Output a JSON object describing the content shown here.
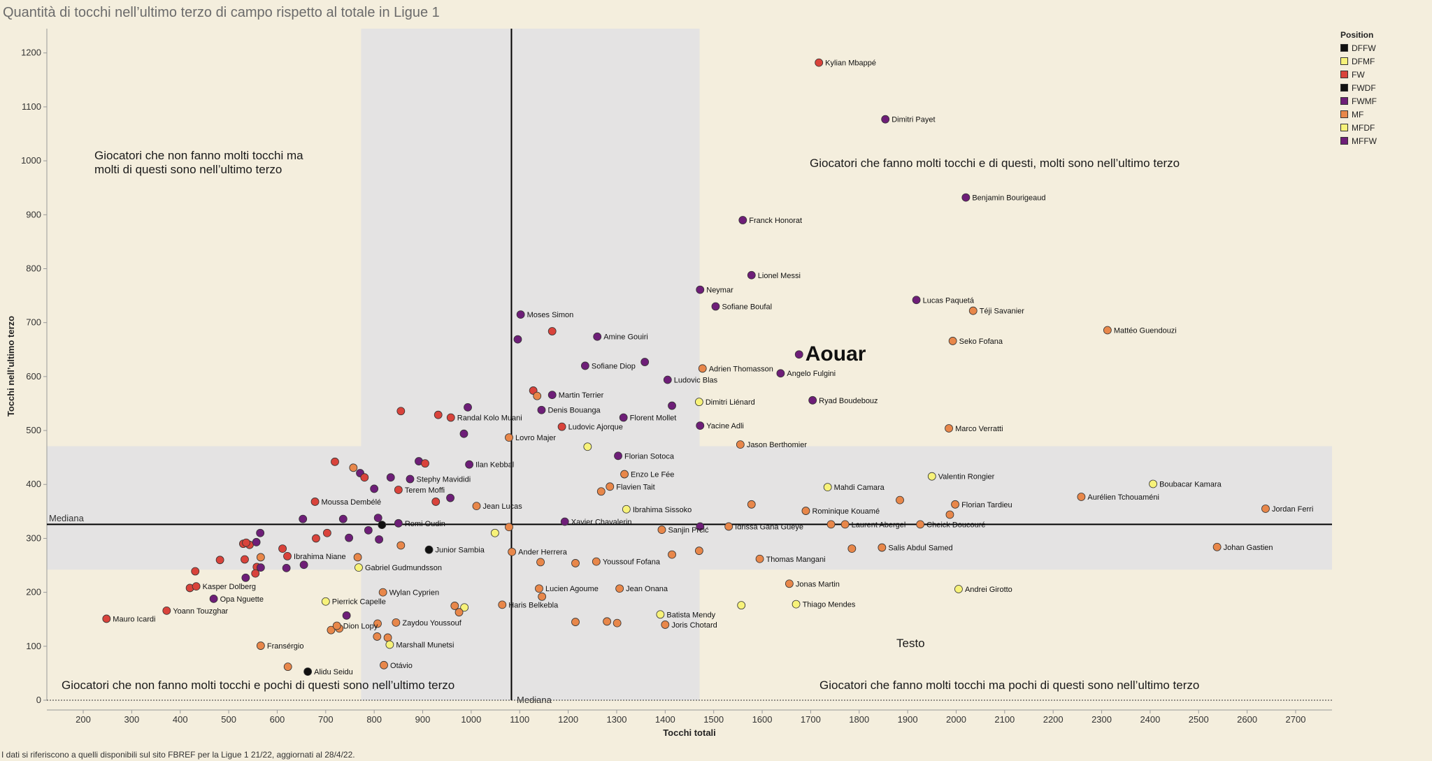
{
  "title": "Quantità di tocchi nell’ultimo terzo di campo rispetto al totale in Ligue 1",
  "footnote": "I dati si riferiscono a quelli disponibili sul sito FBREF per la Ligue 1 21/22,  aggiornati al 28/4/22.",
  "quadrants": {
    "top_left_line1": "Giocatori che non fanno molti tocchi ma",
    "top_left_line2": "molti di questi sono nell’ultimo terzo",
    "top_right": "Giocatori che fanno molti tocchi e di questi, molti sono nell’ultimo terzo",
    "bottom_left": "Giocatori che non fanno molti tocchi e pochi di questi sono nell’ultimo terzo",
    "bottom_right": "Giocatori che fanno molti tocchi ma pochi di questi sono nell’ultimo terzo",
    "testo": "Testo"
  },
  "legend": {
    "title": "Position",
    "items": [
      {
        "label": "DFFW",
        "color": "#111111"
      },
      {
        "label": "DFMF",
        "color": "#f7f27a"
      },
      {
        "label": "FW",
        "color": "#d9433b"
      },
      {
        "label": "FWDF",
        "color": "#111111"
      },
      {
        "label": "FWMF",
        "color": "#6e1e78"
      },
      {
        "label": "MF",
        "color": "#e8874a"
      },
      {
        "label": "MFDF",
        "color": "#f7f27a"
      },
      {
        "label": "MFFW",
        "color": "#6e1e78"
      }
    ]
  },
  "chart_data": {
    "type": "scatter",
    "title": "Quantità di tocchi nell’ultimo terzo di campo rispetto al totale in Ligue 1",
    "xlabel": "Tocchi totali",
    "ylabel": "Tocchi nell’ultimo terzo",
    "xlim": [
      125,
      2775
    ],
    "ylim": [
      0,
      1245
    ],
    "x_ticks": [
      200,
      300,
      400,
      500,
      600,
      700,
      800,
      900,
      1000,
      1100,
      1200,
      1300,
      1400,
      1500,
      1600,
      1700,
      1800,
      1900,
      2000,
      2100,
      2200,
      2300,
      2400,
      2500,
      2600,
      2700
    ],
    "y_ticks": [
      0,
      100,
      200,
      300,
      400,
      500,
      600,
      700,
      800,
      900,
      1000,
      1100,
      1200
    ],
    "median_x": 1083,
    "median_y": 326,
    "median_label": "Mediana",
    "bands": {
      "x_range": [
        773,
        1471
      ],
      "y_range": [
        242,
        471
      ]
    },
    "grid": false,
    "legend_position": "top-right",
    "colors": {
      "FW": "#d9433b",
      "FWMF": "#6e1e78",
      "MFFW": "#6e1e78",
      "MF": "#e8874a",
      "DFMF": "#f7f27a",
      "MFDF": "#f7f27a",
      "DFFW": "#111111",
      "FWDF": "#111111"
    },
    "labeled_points": [
      {
        "name": "Kylian Mbappé",
        "x": 1717,
        "y": 1182,
        "pos": "FW"
      },
      {
        "name": "Dimitri Payet",
        "x": 1854,
        "y": 1077,
        "pos": "FWMF"
      },
      {
        "name": "Benjamin Bourigeaud",
        "x": 2020,
        "y": 932,
        "pos": "FWMF"
      },
      {
        "name": "Franck Honorat",
        "x": 1560,
        "y": 890,
        "pos": "FWMF"
      },
      {
        "name": "Lionel Messi",
        "x": 1578,
        "y": 788,
        "pos": "FWMF"
      },
      {
        "name": "Neymar",
        "x": 1472,
        "y": 761,
        "pos": "FWMF"
      },
      {
        "name": "Sofiane Boufal",
        "x": 1504,
        "y": 730,
        "pos": "FWMF"
      },
      {
        "name": "Lucas Paquetá",
        "x": 1918,
        "y": 742,
        "pos": "FWMF"
      },
      {
        "name": "Téji Savanier",
        "x": 2035,
        "y": 722,
        "pos": "MF"
      },
      {
        "name": "Mattéo Guendouzi",
        "x": 2312,
        "y": 686,
        "pos": "MF"
      },
      {
        "name": "Seko Fofana",
        "x": 1993,
        "y": 666,
        "pos": "MF"
      },
      {
        "name": "Aouar",
        "x": 1676,
        "y": 641,
        "pos": "FWMF"
      },
      {
        "name": "Adrien Thomasson",
        "x": 1477,
        "y": 615,
        "pos": "MF"
      },
      {
        "name": "Angelo Fulgini",
        "x": 1638,
        "y": 606,
        "pos": "FWMF"
      },
      {
        "name": "Ludovic Blas",
        "x": 1405,
        "y": 594,
        "pos": "FWMF"
      },
      {
        "name": "Moses Simon",
        "x": 1102,
        "y": 715,
        "pos": "FWMF"
      },
      {
        "name": "Amine Gouiri",
        "x": 1260,
        "y": 674,
        "pos": "FWMF"
      },
      {
        "name": "Sofiane Diop",
        "x": 1235,
        "y": 620,
        "pos": "FWMF"
      },
      {
        "name": "Martin Terrier",
        "x": 1167,
        "y": 566,
        "pos": "FWMF"
      },
      {
        "name": "Dimitri Liénard",
        "x": 1470,
        "y": 553,
        "pos": "DFMF"
      },
      {
        "name": "Ryad Boudebouz",
        "x": 1704,
        "y": 556,
        "pos": "FWMF"
      },
      {
        "name": "Denis Bouanga",
        "x": 1145,
        "y": 538,
        "pos": "FWMF"
      },
      {
        "name": "Florent Mollet",
        "x": 1314,
        "y": 524,
        "pos": "FWMF"
      },
      {
        "name": "Ludovic Ajorque",
        "x": 1187,
        "y": 507,
        "pos": "FW"
      },
      {
        "name": "Yacine Adli",
        "x": 1472,
        "y": 509,
        "pos": "FWMF"
      },
      {
        "name": "Marco Verratti",
        "x": 1985,
        "y": 504,
        "pos": "MF"
      },
      {
        "name": "Randal Kolo Muani",
        "x": 958,
        "y": 524,
        "pos": "FW"
      },
      {
        "name": "Lovro Majer",
        "x": 1078,
        "y": 487,
        "pos": "MF"
      },
      {
        "name": "Jason Berthomier",
        "x": 1555,
        "y": 474,
        "pos": "MF"
      },
      {
        "name": "Florian Sotoca",
        "x": 1303,
        "y": 453,
        "pos": "FWMF"
      },
      {
        "name": "Ilan Kebbal",
        "x": 996,
        "y": 437,
        "pos": "FWMF"
      },
      {
        "name": "Enzo Le Fée",
        "x": 1316,
        "y": 419,
        "pos": "MF"
      },
      {
        "name": "Valentin Rongier",
        "x": 1950,
        "y": 415,
        "pos": "DFMF"
      },
      {
        "name": "Stephy Mavididi",
        "x": 874,
        "y": 410,
        "pos": "FWMF"
      },
      {
        "name": "Boubacar Kamara",
        "x": 2406,
        "y": 401,
        "pos": "DFMF"
      },
      {
        "name": "Flavien Tait",
        "x": 1286,
        "y": 396,
        "pos": "MF"
      },
      {
        "name": "Mahdi Camara",
        "x": 1735,
        "y": 395,
        "pos": "DFMF"
      },
      {
        "name": "Terem Moffi",
        "x": 850,
        "y": 390,
        "pos": "FW"
      },
      {
        "name": "Aurélien Tchouaméni",
        "x": 2258,
        "y": 377,
        "pos": "MF"
      },
      {
        "name": "Moussa Dembélé",
        "x": 678,
        "y": 368,
        "pos": "FW"
      },
      {
        "name": "Florian Tardieu",
        "x": 1998,
        "y": 363,
        "pos": "MF"
      },
      {
        "name": "Jean Lucas",
        "x": 1011,
        "y": 360,
        "pos": "MF"
      },
      {
        "name": "Ibrahima Sissoko",
        "x": 1320,
        "y": 354,
        "pos": "DFMF"
      },
      {
        "name": "Jordan Ferri",
        "x": 2638,
        "y": 355,
        "pos": "MF"
      },
      {
        "name": "Rominique Kouamé",
        "x": 1690,
        "y": 351,
        "pos": "MF"
      },
      {
        "name": "Xavier Chavalerin",
        "x": 1193,
        "y": 331,
        "pos": "FWMF"
      },
      {
        "name": "Remi Oudin",
        "x": 850,
        "y": 328,
        "pos": "FWMF"
      },
      {
        "name": "Laurent Abergel",
        "x": 1771,
        "y": 326,
        "pos": "MF"
      },
      {
        "name": "Cheick Doucouré",
        "x": 1926,
        "y": 326,
        "pos": "MF"
      },
      {
        "name": "Idrissa Gana Gueye",
        "x": 1531,
        "y": 322,
        "pos": "MF"
      },
      {
        "name": "Sanjin Prcić",
        "x": 1393,
        "y": 316,
        "pos": "MF"
      },
      {
        "name": "Junior Sambia",
        "x": 913,
        "y": 279,
        "pos": "DFFW"
      },
      {
        "name": "Johan Gastien",
        "x": 2538,
        "y": 284,
        "pos": "MF"
      },
      {
        "name": "Salis Abdul Samed",
        "x": 1847,
        "y": 283,
        "pos": "MF"
      },
      {
        "name": "Ander Herrera",
        "x": 1084,
        "y": 275,
        "pos": "MF"
      },
      {
        "name": "Ibrahima Niane",
        "x": 621,
        "y": 267,
        "pos": "FW"
      },
      {
        "name": "Thomas Mangani",
        "x": 1595,
        "y": 262,
        "pos": "MF"
      },
      {
        "name": "Youssouf Fofana",
        "x": 1258,
        "y": 257,
        "pos": "MF"
      },
      {
        "name": "Gabriel Gudmundsson",
        "x": 768,
        "y": 246,
        "pos": "DFMF"
      },
      {
        "name": "Jonas Martin",
        "x": 1656,
        "y": 216,
        "pos": "MF"
      },
      {
        "name": "Kasper Dolberg",
        "x": 433,
        "y": 211,
        "pos": "FW"
      },
      {
        "name": "Lucien Agoume",
        "x": 1140,
        "y": 207,
        "pos": "MF"
      },
      {
        "name": "Jean Onana",
        "x": 1306,
        "y": 207,
        "pos": "MF"
      },
      {
        "name": "Andrei Girotto",
        "x": 2005,
        "y": 206,
        "pos": "DFMF"
      },
      {
        "name": "Wylan Cyprien",
        "x": 818,
        "y": 200,
        "pos": "MF"
      },
      {
        "name": "Opa Nguette",
        "x": 469,
        "y": 188,
        "pos": "FWMF"
      },
      {
        "name": "Pierrick Capelle",
        "x": 700,
        "y": 183,
        "pos": "DFMF"
      },
      {
        "name": "Thiago Mendes",
        "x": 1670,
        "y": 178,
        "pos": "DFMF"
      },
      {
        "name": "Haris Belkebla",
        "x": 1064,
        "y": 177,
        "pos": "MF"
      },
      {
        "name": "Yoann Touzghar",
        "x": 372,
        "y": 166,
        "pos": "FW"
      },
      {
        "name": "Batista Mendy",
        "x": 1390,
        "y": 159,
        "pos": "DFMF"
      },
      {
        "name": "Mauro Icardi",
        "x": 248,
        "y": 151,
        "pos": "FW"
      },
      {
        "name": "Zaydou Youssouf",
        "x": 845,
        "y": 144,
        "pos": "MF"
      },
      {
        "name": "Joris Chotard",
        "x": 1400,
        "y": 140,
        "pos": "MF"
      },
      {
        "name": "Dion Lopy",
        "x": 723,
        "y": 138,
        "pos": "MF"
      },
      {
        "name": "Marshall Munetsi",
        "x": 832,
        "y": 103,
        "pos": "DFMF"
      },
      {
        "name": "Fransérgio",
        "x": 566,
        "y": 101,
        "pos": "MF"
      },
      {
        "name": "Otávio",
        "x": 820,
        "y": 65,
        "pos": "MF"
      },
      {
        "name": "Alidu Seidu",
        "x": 663,
        "y": 53,
        "pos": "DFFW"
      }
    ],
    "other_points": [
      {
        "x": 1167,
        "y": 684,
        "pos": "FW"
      },
      {
        "x": 1096,
        "y": 669,
        "pos": "FWMF"
      },
      {
        "x": 1358,
        "y": 627,
        "pos": "FWMF"
      },
      {
        "x": 1128,
        "y": 574,
        "pos": "FW"
      },
      {
        "x": 1136,
        "y": 564,
        "pos": "MF"
      },
      {
        "x": 1414,
        "y": 546,
        "pos": "FWMF"
      },
      {
        "x": 855,
        "y": 536,
        "pos": "FW"
      },
      {
        "x": 932,
        "y": 529,
        "pos": "FW"
      },
      {
        "x": 993,
        "y": 543,
        "pos": "FWMF"
      },
      {
        "x": 985,
        "y": 494,
        "pos": "FWMF"
      },
      {
        "x": 1240,
        "y": 470,
        "pos": "DFMF"
      },
      {
        "x": 892,
        "y": 443,
        "pos": "FWMF"
      },
      {
        "x": 905,
        "y": 439,
        "pos": "FW"
      },
      {
        "x": 719,
        "y": 442,
        "pos": "FW"
      },
      {
        "x": 757,
        "y": 431,
        "pos": "MF"
      },
      {
        "x": 771,
        "y": 421,
        "pos": "FWMF"
      },
      {
        "x": 780,
        "y": 413,
        "pos": "FW"
      },
      {
        "x": 834,
        "y": 413,
        "pos": "FWMF"
      },
      {
        "x": 800,
        "y": 392,
        "pos": "FWMF"
      },
      {
        "x": 1268,
        "y": 387,
        "pos": "MF"
      },
      {
        "x": 957,
        "y": 375,
        "pos": "FWMF"
      },
      {
        "x": 927,
        "y": 368,
        "pos": "FW"
      },
      {
        "x": 1578,
        "y": 363,
        "pos": "MF"
      },
      {
        "x": 1884,
        "y": 371,
        "pos": "MF"
      },
      {
        "x": 653,
        "y": 336,
        "pos": "FWMF"
      },
      {
        "x": 736,
        "y": 336,
        "pos": "FWMF"
      },
      {
        "x": 808,
        "y": 338,
        "pos": "FWMF"
      },
      {
        "x": 816,
        "y": 325,
        "pos": "DFFW"
      },
      {
        "x": 1987,
        "y": 344,
        "pos": "MF"
      },
      {
        "x": 1742,
        "y": 326,
        "pos": "MF"
      },
      {
        "x": 1078,
        "y": 321,
        "pos": "MF"
      },
      {
        "x": 1472,
        "y": 322,
        "pos": "FWMF"
      },
      {
        "x": 1049,
        "y": 310,
        "pos": "DFMF"
      },
      {
        "x": 565,
        "y": 310,
        "pos": "FWMF"
      },
      {
        "x": 703,
        "y": 310,
        "pos": "FW"
      },
      {
        "x": 788,
        "y": 315,
        "pos": "FWMF"
      },
      {
        "x": 680,
        "y": 300,
        "pos": "FW"
      },
      {
        "x": 748,
        "y": 301,
        "pos": "FWMF"
      },
      {
        "x": 810,
        "y": 298,
        "pos": "FWMF"
      },
      {
        "x": 530,
        "y": 290,
        "pos": "FW"
      },
      {
        "x": 543,
        "y": 288,
        "pos": "FW"
      },
      {
        "x": 536,
        "y": 292,
        "pos": "FW"
      },
      {
        "x": 557,
        "y": 293,
        "pos": "FWMF"
      },
      {
        "x": 855,
        "y": 287,
        "pos": "MF"
      },
      {
        "x": 611,
        "y": 281,
        "pos": "FW"
      },
      {
        "x": 1470,
        "y": 277,
        "pos": "MF"
      },
      {
        "x": 1785,
        "y": 281,
        "pos": "MF"
      },
      {
        "x": 1414,
        "y": 270,
        "pos": "MF"
      },
      {
        "x": 566,
        "y": 265,
        "pos": "MF"
      },
      {
        "x": 766,
        "y": 265,
        "pos": "MF"
      },
      {
        "x": 482,
        "y": 260,
        "pos": "FW"
      },
      {
        "x": 533,
        "y": 261,
        "pos": "FW"
      },
      {
        "x": 1143,
        "y": 256,
        "pos": "MF"
      },
      {
        "x": 1215,
        "y": 254,
        "pos": "MF"
      },
      {
        "x": 655,
        "y": 251,
        "pos": "FWMF"
      },
      {
        "x": 558,
        "y": 247,
        "pos": "FW"
      },
      {
        "x": 566,
        "y": 246,
        "pos": "FWMF"
      },
      {
        "x": 619,
        "y": 245,
        "pos": "FWMF"
      },
      {
        "x": 431,
        "y": 239,
        "pos": "FW"
      },
      {
        "x": 555,
        "y": 235,
        "pos": "FW"
      },
      {
        "x": 535,
        "y": 227,
        "pos": "FWMF"
      },
      {
        "x": 420,
        "y": 208,
        "pos": "FW"
      },
      {
        "x": 1146,
        "y": 192,
        "pos": "MF"
      },
      {
        "x": 966,
        "y": 175,
        "pos": "MF"
      },
      {
        "x": 986,
        "y": 172,
        "pos": "DFMF"
      },
      {
        "x": 1557,
        "y": 176,
        "pos": "DFMF"
      },
      {
        "x": 975,
        "y": 163,
        "pos": "MF"
      },
      {
        "x": 743,
        "y": 157,
        "pos": "FWMF"
      },
      {
        "x": 1215,
        "y": 145,
        "pos": "MF"
      },
      {
        "x": 1280,
        "y": 146,
        "pos": "MF"
      },
      {
        "x": 1301,
        "y": 143,
        "pos": "MF"
      },
      {
        "x": 807,
        "y": 142,
        "pos": "MF"
      },
      {
        "x": 728,
        "y": 133,
        "pos": "MF"
      },
      {
        "x": 711,
        "y": 130,
        "pos": "MF"
      },
      {
        "x": 806,
        "y": 118,
        "pos": "MF"
      },
      {
        "x": 828,
        "y": 116,
        "pos": "MF"
      },
      {
        "x": 622,
        "y": 62,
        "pos": "MF"
      }
    ]
  }
}
